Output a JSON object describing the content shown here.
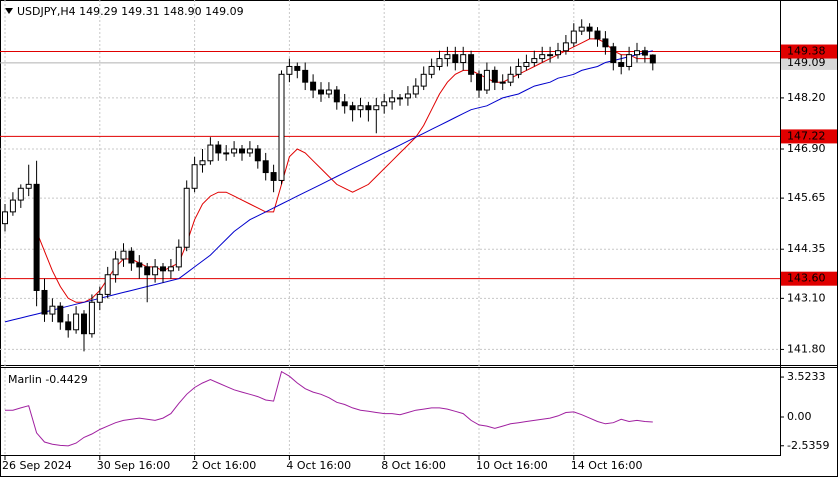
{
  "chart_data": [
    {
      "type": "candlestick",
      "title": "USDJPY,H4  149.29 149.31 148.90 149.09",
      "x": [
        "26 Sep 2024",
        null,
        null,
        null,
        null,
        null,
        null,
        null,
        null,
        null,
        null,
        null,
        "30 Sep 16:00",
        null,
        null,
        null,
        null,
        null,
        null,
        null,
        null,
        null,
        null,
        null,
        "2 Oct 16:00",
        null,
        null,
        null,
        null,
        null,
        null,
        null,
        null,
        null,
        null,
        null,
        "4 Oct 16:00",
        null,
        null,
        null,
        null,
        null,
        null,
        null,
        null,
        null,
        null,
        null,
        "8 Oct 16:00",
        null,
        null,
        null,
        null,
        null,
        null,
        null,
        null,
        null,
        null,
        null,
        "10 Oct 16:00",
        null,
        null,
        null,
        null,
        null,
        null,
        null,
        null,
        null,
        null,
        null,
        "14 Oct 16:00",
        null,
        null,
        null,
        null,
        null,
        null,
        null,
        null,
        null,
        null
      ],
      "ohlc": [
        [
          145.0,
          145.5,
          144.8,
          145.3
        ],
        [
          145.3,
          145.8,
          145.2,
          145.6
        ],
        [
          145.6,
          146.0,
          145.4,
          145.9
        ],
        [
          145.9,
          146.5,
          145.7,
          146.0
        ],
        [
          146.0,
          146.6,
          142.9,
          143.3
        ],
        [
          143.3,
          143.6,
          142.5,
          142.7
        ],
        [
          142.7,
          143.1,
          142.5,
          142.9
        ],
        [
          142.9,
          143.0,
          142.3,
          142.5
        ],
        [
          142.5,
          142.7,
          142.1,
          142.3
        ],
        [
          142.3,
          142.9,
          142.2,
          142.7
        ],
        [
          142.7,
          142.8,
          141.75,
          142.2
        ],
        [
          142.2,
          143.2,
          142.1,
          143.0
        ],
        [
          143.0,
          143.4,
          142.8,
          143.2
        ],
        [
          143.2,
          143.9,
          143.1,
          143.7
        ],
        [
          143.7,
          144.3,
          143.5,
          144.1
        ],
        [
          144.1,
          144.5,
          143.9,
          144.3
        ],
        [
          144.3,
          144.4,
          143.8,
          144.0
        ],
        [
          144.0,
          144.2,
          143.6,
          143.9
        ],
        [
          143.9,
          144.0,
          143.0,
          143.7
        ],
        [
          143.7,
          144.1,
          143.5,
          143.9
        ],
        [
          143.9,
          144.0,
          143.5,
          143.8
        ],
        [
          143.8,
          144.1,
          143.6,
          143.9
        ],
        [
          143.9,
          144.6,
          143.8,
          144.4
        ],
        [
          144.4,
          146.1,
          144.3,
          145.9
        ],
        [
          145.9,
          146.7,
          145.8,
          146.5
        ],
        [
          146.5,
          146.9,
          146.3,
          146.6
        ],
        [
          146.6,
          147.2,
          146.5,
          147.0
        ],
        [
          147.0,
          147.1,
          146.6,
          146.8
        ],
        [
          146.8,
          147.0,
          146.6,
          146.8
        ],
        [
          146.8,
          147.1,
          146.7,
          146.9
        ],
        [
          146.9,
          147.0,
          146.6,
          146.8
        ],
        [
          146.8,
          147.1,
          146.7,
          146.9
        ],
        [
          146.9,
          147.0,
          146.4,
          146.6
        ],
        [
          146.6,
          146.8,
          146.1,
          146.3
        ],
        [
          146.3,
          146.5,
          145.8,
          146.1
        ],
        [
          146.1,
          148.9,
          146.0,
          148.8
        ],
        [
          148.8,
          149.2,
          148.6,
          149.0
        ],
        [
          149.0,
          149.1,
          148.7,
          148.9
        ],
        [
          148.9,
          149.1,
          148.4,
          148.6
        ],
        [
          148.6,
          148.8,
          148.2,
          148.4
        ],
        [
          148.4,
          148.6,
          148.1,
          148.3
        ],
        [
          148.3,
          148.6,
          148.2,
          148.4
        ],
        [
          148.4,
          148.5,
          147.9,
          148.1
        ],
        [
          148.1,
          148.3,
          147.8,
          148.0
        ],
        [
          148.0,
          148.1,
          147.6,
          147.9
        ],
        [
          147.9,
          148.2,
          147.7,
          148.0
        ],
        [
          148.0,
          148.1,
          147.6,
          147.9
        ],
        [
          147.9,
          148.2,
          147.3,
          148.0
        ],
        [
          148.0,
          148.3,
          147.8,
          148.1
        ],
        [
          148.1,
          148.4,
          147.9,
          148.2
        ],
        [
          148.2,
          148.3,
          148.0,
          148.2
        ],
        [
          148.2,
          148.5,
          148.0,
          148.3
        ],
        [
          148.3,
          148.7,
          148.2,
          148.5
        ],
        [
          148.5,
          149.0,
          148.4,
          148.8
        ],
        [
          148.8,
          149.2,
          148.7,
          149.0
        ],
        [
          149.0,
          149.4,
          148.9,
          149.2
        ],
        [
          149.2,
          149.5,
          149.0,
          149.3
        ],
        [
          149.3,
          149.5,
          148.9,
          149.1
        ],
        [
          149.1,
          149.5,
          148.9,
          149.3
        ],
        [
          149.3,
          149.4,
          148.6,
          148.8
        ],
        [
          148.8,
          148.9,
          148.2,
          148.4
        ],
        [
          148.4,
          149.1,
          148.3,
          148.9
        ],
        [
          148.9,
          149.0,
          148.4,
          148.6
        ],
        [
          148.6,
          148.8,
          148.4,
          148.6
        ],
        [
          148.6,
          149.0,
          148.5,
          148.8
        ],
        [
          148.8,
          149.2,
          148.7,
          149.0
        ],
        [
          149.0,
          149.3,
          148.9,
          149.1
        ],
        [
          149.1,
          149.4,
          149.0,
          149.2
        ],
        [
          149.2,
          149.5,
          149.1,
          149.3
        ],
        [
          149.3,
          149.5,
          149.1,
          149.3
        ],
        [
          149.3,
          149.6,
          149.2,
          149.4
        ],
        [
          149.4,
          149.8,
          149.3,
          149.6
        ],
        [
          149.6,
          150.1,
          149.5,
          149.9
        ],
        [
          149.9,
          150.2,
          149.8,
          150.0
        ],
        [
          150.0,
          150.1,
          149.7,
          149.9
        ],
        [
          149.9,
          150.0,
          149.5,
          149.7
        ],
        [
          149.7,
          149.9,
          149.3,
          149.5
        ],
        [
          149.5,
          149.6,
          148.9,
          149.1
        ],
        [
          149.1,
          149.3,
          148.8,
          149.0
        ],
        [
          149.0,
          149.5,
          148.9,
          149.3
        ],
        [
          149.3,
          149.6,
          149.1,
          149.4
        ],
        [
          149.4,
          149.5,
          149.1,
          149.29
        ],
        [
          149.29,
          149.31,
          148.9,
          149.09
        ]
      ],
      "lines": [
        {
          "color": "#e00000",
          "values": [
            null,
            null,
            null,
            null,
            144.8,
            144.3,
            143.8,
            143.4,
            143.1,
            143.0,
            143.0,
            143.1,
            143.3,
            143.6,
            143.9,
            144.1,
            144.1,
            144.0,
            143.9,
            143.9,
            143.8,
            143.9,
            144.0,
            144.5,
            145.1,
            145.5,
            145.7,
            145.8,
            145.8,
            145.7,
            145.6,
            145.5,
            145.4,
            145.3,
            145.3,
            146.0,
            146.7,
            146.9,
            146.8,
            146.6,
            146.4,
            146.2,
            146.0,
            145.9,
            145.8,
            145.9,
            146.0,
            146.2,
            146.4,
            146.6,
            146.8,
            147.0,
            147.2,
            147.5,
            147.9,
            148.3,
            148.6,
            148.8,
            148.9,
            148.9,
            148.8,
            148.7,
            148.6,
            148.6,
            148.7,
            148.8,
            148.9,
            149.0,
            149.1,
            149.2,
            149.3,
            149.4,
            149.5,
            149.6,
            149.7,
            149.7,
            149.6,
            149.4,
            149.3,
            149.3,
            149.2,
            149.2,
            149.2
          ]
        },
        {
          "color": "#0000cc",
          "values": [
            142.5,
            142.55,
            142.6,
            142.65,
            142.7,
            142.75,
            142.8,
            142.85,
            142.9,
            142.95,
            143.0,
            143.05,
            143.1,
            143.15,
            143.2,
            143.25,
            143.3,
            143.35,
            143.4,
            143.45,
            143.5,
            143.55,
            143.6,
            143.75,
            143.9,
            144.05,
            144.2,
            144.4,
            144.6,
            144.8,
            144.95,
            145.1,
            145.2,
            145.3,
            145.4,
            145.5,
            145.6,
            145.7,
            145.8,
            145.9,
            146.0,
            146.1,
            146.2,
            146.3,
            146.4,
            146.5,
            146.6,
            146.7,
            146.8,
            146.9,
            147.0,
            147.1,
            147.2,
            147.3,
            147.4,
            147.5,
            147.6,
            147.7,
            147.8,
            147.9,
            147.95,
            148.0,
            148.1,
            148.2,
            148.25,
            148.3,
            148.4,
            148.5,
            148.55,
            148.6,
            148.7,
            148.75,
            148.8,
            148.9,
            148.95,
            149.0,
            149.1,
            149.15,
            149.2,
            149.25,
            149.3,
            149.35,
            149.4
          ]
        }
      ],
      "levels": [
        149.38,
        147.22,
        {
          "value": 143.6,
          "label": "143.60"
        }
      ],
      "level_color": "#e00000",
      "last_price": 149.09,
      "ylim": [
        141.48,
        150.64
      ],
      "yticks": [
        {
          "value": 148.2,
          "label": "148.20"
        },
        {
          "value": 146.9,
          "label": "146.90"
        },
        145.65,
        144.35,
        {
          "value": 143.1,
          "label": "143.10"
        },
        {
          "value": 141.8,
          "label": "141.80"
        }
      ],
      "grid": true
    },
    {
      "type": "line",
      "title": "Marlin -0.4429",
      "color": "#a020a0",
      "values": [
        0.6,
        0.6,
        0.8,
        1.0,
        -1.4,
        -2.2,
        -2.4,
        -2.5,
        -2.55,
        -2.3,
        -1.8,
        -1.5,
        -1.1,
        -0.8,
        -0.5,
        -0.3,
        -0.2,
        -0.1,
        -0.2,
        -0.3,
        -0.1,
        0.3,
        1.2,
        2.0,
        2.6,
        3.0,
        3.3,
        3.0,
        2.7,
        2.4,
        2.2,
        2.0,
        1.8,
        1.5,
        1.4,
        4.0,
        3.6,
        3.0,
        2.5,
        2.2,
        2.0,
        1.7,
        1.3,
        1.1,
        0.8,
        0.6,
        0.5,
        0.4,
        0.3,
        0.3,
        0.2,
        0.4,
        0.6,
        0.7,
        0.8,
        0.8,
        0.7,
        0.5,
        0.3,
        -0.3,
        -0.7,
        -0.8,
        -1.0,
        -0.8,
        -0.6,
        -0.5,
        -0.4,
        -0.3,
        -0.2,
        -0.1,
        0.1,
        0.4,
        0.45,
        0.2,
        -0.1,
        -0.4,
        -0.6,
        -0.5,
        -0.2,
        -0.4,
        -0.3,
        -0.4,
        -0.4429
      ],
      "ylim": [
        -3.35,
        4.41
      ],
      "yticks": [
        3.5233,
        {
          "value": 0,
          "label": "0.00"
        },
        -2.5359
      ]
    }
  ]
}
